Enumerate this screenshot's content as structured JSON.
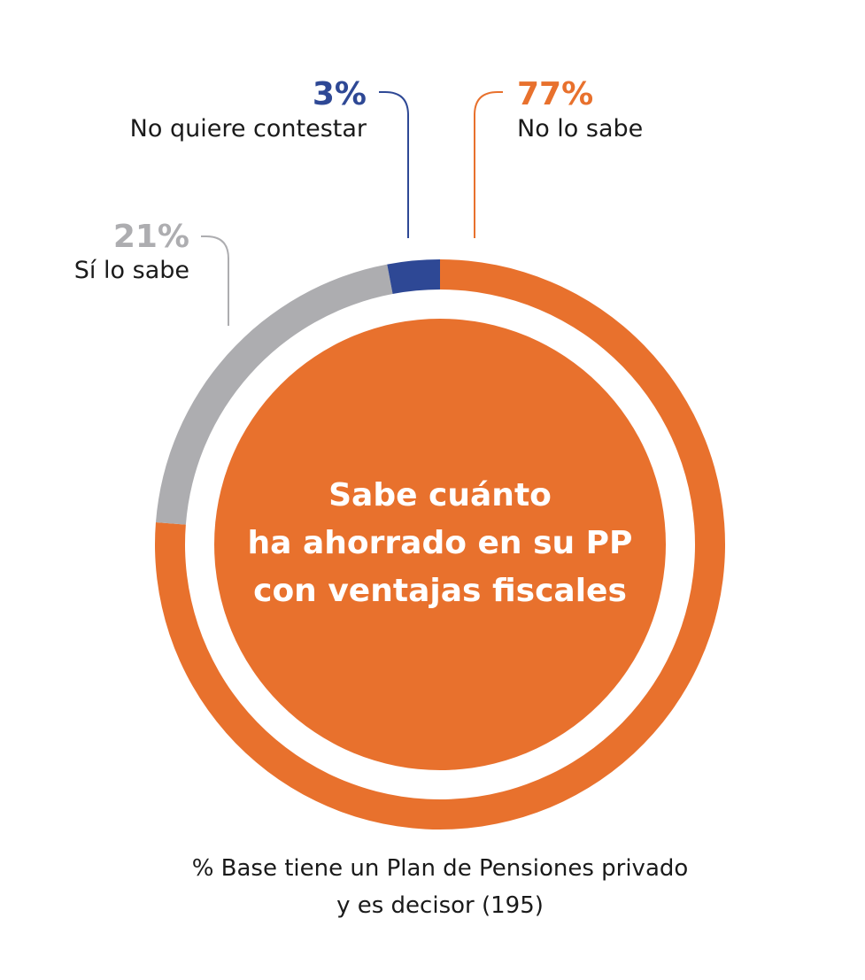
{
  "chart_data": {
    "type": "pie",
    "categories": [
      "No lo sabe",
      "Sí lo sabe",
      "No quiere contestar"
    ],
    "values": [
      77,
      21,
      3
    ],
    "value_labels": [
      "77%",
      "21%",
      "3%"
    ],
    "colors": [
      "#E8712D",
      "#ADADB0",
      "#2E4895"
    ],
    "center_text": [
      "Sabe cuánto",
      "ha ahorrado en su PP",
      "con ventajas fiscales"
    ],
    "center_color": "#E8712D",
    "footnote": [
      "% Base tiene un Plan de Pensiones privado",
      "y es decisor (195)"
    ]
  }
}
